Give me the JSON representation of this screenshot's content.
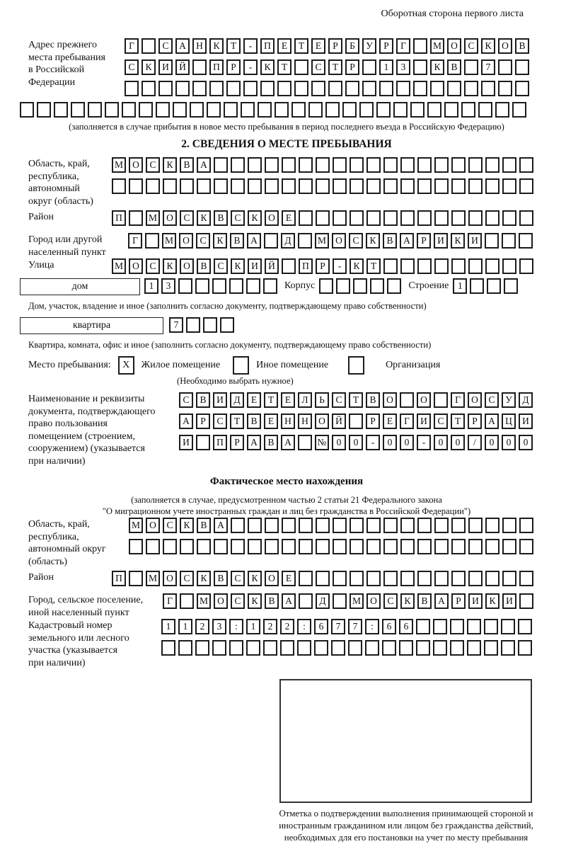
{
  "page": {
    "header_note": "Оборотная сторона первого листа"
  },
  "prev_address": {
    "label": "Адрес прежнего\nместа пребывания\nв Российской\nФедерации",
    "r1": "Г_САНКТ-ПЕТЕРБУРГ_МОСКОВ",
    "r2": "СКИЙ_ПР-КТ_СТР_13_КВ_7",
    "r3": "",
    "r4": "",
    "caption": "(заполняется в случае прибытия в новое место пребывания в период последнего въезда в Российскую Федерацию)"
  },
  "section2": {
    "title": "2. СВЕДЕНИЯ О МЕСТЕ ПРЕБЫВАНИЯ",
    "oblast": {
      "label": "Область, край,\nреспублика,\nавтономный\nокруг (область)",
      "r1": "МОСКВА",
      "r2": ""
    },
    "rayon": {
      "label": "Район",
      "r1": "П_МОСКВСКОЕ"
    },
    "gorod": {
      "label": "Город или другой\nнаселенный пункт",
      "r1": "Г_МОСКВА_Д_МОСКВАРИКИ"
    },
    "ulitsa": {
      "label": "Улица",
      "r1": "МОСКОВСКИЙ_ПР-КТ"
    },
    "dom": {
      "label": "дом",
      "value": "13",
      "korpus_label": "Корпус",
      "korpus": "",
      "stroenie_label": "Строение",
      "stroenie": "1",
      "caption": "Дом, участок, владение и иное (заполнить согласно документу, подтверждающему право собственности)"
    },
    "kvartira": {
      "label": "квартира",
      "value": "7",
      "caption": "Квартира, комната, офис и иное (заполнить согласно документу, подтверждающему право собственности)"
    },
    "mesto": {
      "label": "Место пребывания:",
      "zhiloe_label": "Жилое помещение",
      "zhiloe_mark": "X",
      "inoe_label": "Иное помещение",
      "inoe_mark": "",
      "org_label": "Организация",
      "org_mark": "",
      "note": "(Необходимо выбрать нужное)"
    },
    "doc": {
      "label": "Наименование и реквизиты\nдокумента, подтверждающего\nправо пользования\nпомещением (строением,\nсооружением) (указывается\nпри наличии)",
      "r1": "СВИДЕТЕЛЬСТВО_О_ГОСУД",
      "r2": "АРСТВЕННОЙ_РЕГИСТРАЦИ",
      "r3": "И_ПРАВА_№00-00-00/000"
    }
  },
  "fact": {
    "title": "Фактическое место нахождения",
    "note1": "(заполняется в случае, предусмотренном частью 2 статьи 21 Федерального закона",
    "note2": "\"О миграционном учете иностранных граждан и лиц без гражданства в Российской Федерации\")",
    "oblast": {
      "label": "Область, край,\nреспублика,\nавтономный округ\n(область)",
      "r1": "МОСКВА",
      "r2": ""
    },
    "rayon": {
      "label": "Район",
      "r1": "П_МОСКВСКОЕ"
    },
    "gorod": {
      "label": "Город, сельское поселение,\nиной населенный пункт",
      "r1": "Г_МОСКВА_Д_МОСКВАРИКИ"
    },
    "kadastr": {
      "label": "Кадастровый номер\nземельного или лесного\nучастка (указывается\nпри наличии)",
      "r1": "1123:122:677:66",
      "r2": ""
    },
    "stamp_caption": "Отметка о подтверждении выполнения принимающей стороной и иностранным гражданином или лицом без гражданства действий, необходимых для его постановки на учет по месту пребывания"
  }
}
